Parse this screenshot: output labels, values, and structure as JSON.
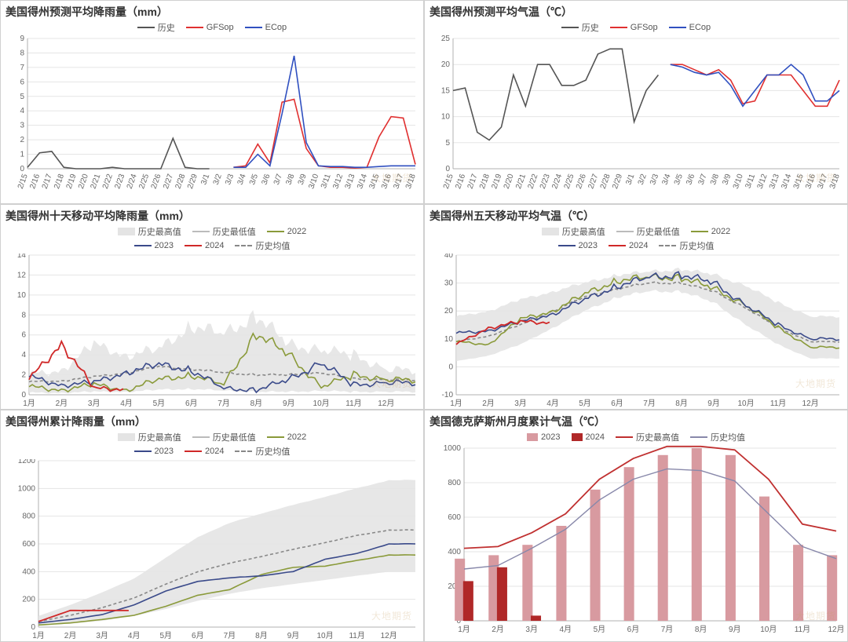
{
  "colors": {
    "history": "#555555",
    "gfsop": "#e03030",
    "ecop": "#3050c0",
    "hist_area": "#e4e4e4",
    "hist_low": "#bbbbbb",
    "y2022": "#8a9a3a",
    "y2023": "#3a4a8a",
    "y2024": "#d02828",
    "hist_mean": "#888888",
    "bar2023": "#d89aa0",
    "bar2024": "#b02828",
    "max_line": "#c03030",
    "mean_line": "#8888aa",
    "grid": "#e5e5e5",
    "axis": "#b0b0b0",
    "text": "#666666",
    "title": "#333333",
    "bg": "#ffffff"
  },
  "watermark": "大地期货",
  "months": [
    "1月",
    "2月",
    "3月",
    "4月",
    "5月",
    "6月",
    "7月",
    "8月",
    "9月",
    "10月",
    "11月",
    "12月"
  ],
  "panel1": {
    "title": "美国得州预测平均降雨量（mm）",
    "legend": [
      {
        "label": "历史",
        "color": "#555555",
        "style": "solid"
      },
      {
        "label": "GFSop",
        "color": "#e03030",
        "style": "solid"
      },
      {
        "label": "ECop",
        "color": "#3050c0",
        "style": "solid"
      }
    ],
    "ylim": [
      0,
      9
    ],
    "ytick_step": 1,
    "xlabels": [
      "2/15",
      "2/16",
      "2/17",
      "2/18",
      "2/19",
      "2/20",
      "2/21",
      "2/22",
      "2/23",
      "2/24",
      "2/25",
      "2/26",
      "2/27",
      "2/28",
      "2/29",
      "3/1",
      "3/2",
      "3/3",
      "3/4",
      "3/5",
      "3/6",
      "3/7",
      "3/8",
      "3/9",
      "3/10",
      "3/11",
      "3/12",
      "3/13",
      "3/14",
      "3/15",
      "3/16",
      "3/17",
      "3/18"
    ],
    "series": {
      "history": [
        0.1,
        1.1,
        1.2,
        0.1,
        0,
        0,
        0,
        0.1,
        0,
        0,
        0,
        0,
        2.1,
        0.1,
        0,
        0,
        null,
        null,
        null,
        null,
        null,
        null,
        null,
        null,
        null,
        null,
        null,
        null,
        null,
        null,
        null,
        null,
        null
      ],
      "gfsop": [
        null,
        null,
        null,
        null,
        null,
        null,
        null,
        null,
        null,
        null,
        null,
        null,
        null,
        null,
        null,
        null,
        null,
        0.1,
        0.2,
        1.7,
        0.4,
        4.6,
        4.8,
        1.4,
        0.2,
        0.1,
        0.1,
        0.05,
        0.1,
        2.2,
        3.6,
        3.5,
        0.3
      ],
      "ecop": [
        null,
        null,
        null,
        null,
        null,
        null,
        null,
        null,
        null,
        null,
        null,
        null,
        null,
        null,
        null,
        null,
        null,
        0.1,
        0.1,
        1.0,
        0.2,
        3.8,
        7.8,
        1.8,
        0.2,
        0.15,
        0.15,
        0.1,
        0.1,
        0.15,
        0.2,
        0.2,
        0.2
      ]
    }
  },
  "panel2": {
    "title": "美国得州预测平均气温（℃）",
    "legend": [
      {
        "label": "历史",
        "color": "#555555",
        "style": "solid"
      },
      {
        "label": "GFSop",
        "color": "#e03030",
        "style": "solid"
      },
      {
        "label": "ECop",
        "color": "#3050c0",
        "style": "solid"
      }
    ],
    "ylim": [
      0,
      25
    ],
    "ytick_step": 5,
    "xlabels": [
      "2/15",
      "2/16",
      "2/17",
      "2/18",
      "2/19",
      "2/20",
      "2/21",
      "2/22",
      "2/23",
      "2/24",
      "2/25",
      "2/26",
      "2/27",
      "2/28",
      "2/29",
      "3/1",
      "3/2",
      "3/3",
      "3/4",
      "3/5",
      "3/6",
      "3/7",
      "3/8",
      "3/9",
      "3/10",
      "3/11",
      "3/12",
      "3/13",
      "3/14",
      "3/15",
      "3/16",
      "3/17",
      "3/18"
    ],
    "series": {
      "history": [
        15,
        15.5,
        7,
        5.5,
        8,
        18,
        12,
        20,
        20,
        16,
        16,
        17,
        22,
        23,
        23,
        9,
        15,
        18,
        null,
        null,
        null,
        null,
        null,
        null,
        null,
        null,
        null,
        null,
        null,
        null,
        null,
        null,
        null
      ],
      "gfsop": [
        null,
        null,
        null,
        null,
        null,
        null,
        null,
        null,
        null,
        null,
        null,
        null,
        null,
        null,
        null,
        null,
        null,
        null,
        20,
        20,
        19,
        18,
        19,
        17,
        12.5,
        13,
        18,
        18,
        18,
        15,
        12,
        12,
        17
      ],
      "ecop": [
        null,
        null,
        null,
        null,
        null,
        null,
        null,
        null,
        null,
        null,
        null,
        null,
        null,
        null,
        null,
        null,
        null,
        null,
        20,
        19.5,
        18.5,
        18,
        18.5,
        16,
        12,
        15,
        18,
        18,
        20,
        18,
        13,
        13,
        15
      ]
    }
  },
  "panel3": {
    "title": "美国得州十天移动平均降雨量（mm）",
    "legend_area": {
      "label": "历史最高值"
    },
    "legend_low": {
      "label": "历史最低值"
    },
    "legend_lines": [
      {
        "label": "2022",
        "color": "#8a9a3a",
        "style": "solid"
      },
      {
        "label": "2023",
        "color": "#3a4a8a",
        "style": "solid"
      },
      {
        "label": "2024",
        "color": "#d02828",
        "style": "solid"
      },
      {
        "label": "历史均值",
        "color": "#888888",
        "style": "dashed"
      }
    ],
    "ylim": [
      0,
      14
    ],
    "ytick_step": 2,
    "band_hi": [
      2,
      2.5,
      5,
      4,
      4.5,
      7,
      6,
      8,
      5,
      4.5,
      4,
      2.5
    ],
    "band_lo": [
      0.2,
      0.2,
      0.3,
      0.3,
      0.5,
      0.6,
      0.4,
      0.3,
      0.3,
      0.4,
      0.3,
      0.3
    ],
    "y2022": [
      0.8,
      0.5,
      1.0,
      0.5,
      1.5,
      2.0,
      1.0,
      6.2,
      4.0,
      0.8,
      2.0,
      1.5
    ],
    "y2023": [
      1.8,
      1.0,
      1.2,
      2.3,
      3.0,
      2.5,
      0.6,
      0.5,
      1.5,
      3.2,
      1.0,
      1.2
    ],
    "y2024": [
      1.5,
      5.2,
      0.6,
      null,
      null,
      null,
      null,
      null,
      null,
      null,
      null,
      null
    ],
    "mean": [
      1.3,
      1.4,
      1.8,
      2.2,
      2.8,
      2.6,
      2.2,
      2.0,
      2.0,
      2.2,
      1.6,
      1.5
    ]
  },
  "panel4": {
    "title": "美国得州五天移动平均气温（℃）",
    "legend_area": {
      "label": "历史最高值"
    },
    "legend_low": {
      "label": "历史最低值"
    },
    "legend_lines": [
      {
        "label": "2022",
        "color": "#8a9a3a",
        "style": "solid"
      },
      {
        "label": "2023",
        "color": "#3a4a8a",
        "style": "solid"
      },
      {
        "label": "2024",
        "color": "#d02828",
        "style": "solid"
      },
      {
        "label": "历史均值",
        "color": "#888888",
        "style": "dashed"
      }
    ],
    "ylim": [
      -10,
      40
    ],
    "ytick_step": 10,
    "band_hi": [
      18,
      20,
      24,
      27,
      30,
      33,
      34,
      35,
      33,
      29,
      23,
      18
    ],
    "band_lo": [
      2,
      4,
      8,
      14,
      20,
      25,
      27,
      27,
      23,
      15,
      8,
      3
    ],
    "y2022": [
      9,
      8,
      17,
      20,
      26,
      31,
      32,
      32,
      28,
      22,
      14,
      7
    ],
    "y2023": [
      12,
      13,
      16,
      19,
      24,
      29,
      32,
      33,
      30,
      22,
      15,
      10
    ],
    "y2024": [
      8,
      14,
      16,
      null,
      null,
      null,
      null,
      null,
      null,
      null,
      null,
      null
    ],
    "mean": [
      9,
      11,
      15,
      20,
      25,
      28,
      30,
      30,
      27,
      21,
      14,
      9
    ]
  },
  "panel5": {
    "title": "美国得州累计降雨量（mm）",
    "legend_area": {
      "label": "历史最高值"
    },
    "legend_low": {
      "label": "历史最低值"
    },
    "legend_lines": [
      {
        "label": "2022",
        "color": "#8a9a3a",
        "style": "solid"
      },
      {
        "label": "2023",
        "color": "#3a4a8a",
        "style": "solid"
      },
      {
        "label": "2024",
        "color": "#d02828",
        "style": "solid"
      },
      {
        "label": "历史均值",
        "color": "#888888",
        "style": "dashed"
      }
    ],
    "ylim": [
      0,
      1200
    ],
    "ytick_step": 200,
    "band_hi": [
      80,
      160,
      250,
      350,
      500,
      650,
      750,
      820,
      880,
      940,
      1000,
      1060
    ],
    "band_lo": [
      10,
      25,
      45,
      80,
      130,
      190,
      240,
      280,
      310,
      340,
      370,
      400
    ],
    "y2022": [
      15,
      30,
      55,
      85,
      150,
      230,
      270,
      380,
      430,
      440,
      480,
      520
    ],
    "y2023": [
      30,
      55,
      90,
      160,
      260,
      330,
      355,
      370,
      400,
      490,
      530,
      600
    ],
    "y2024": [
      40,
      120,
      120,
      null,
      null,
      null,
      null,
      null,
      null,
      null,
      null,
      null
    ],
    "mean": [
      40,
      85,
      140,
      210,
      310,
      400,
      460,
      510,
      560,
      610,
      660,
      700
    ]
  },
  "panel6": {
    "title": "美国德克萨斯州月度累计气温（℃）",
    "legend": [
      {
        "label": "2023",
        "color": "#d89aa0",
        "type": "bar"
      },
      {
        "label": "2024",
        "color": "#b02828",
        "type": "bar"
      },
      {
        "label": "历史最高值",
        "color": "#c03030",
        "type": "line"
      },
      {
        "label": "历史均值",
        "color": "#8888aa",
        "type": "line"
      }
    ],
    "ylim": [
      0,
      1000
    ],
    "ytick_step": 200,
    "bars2023": [
      360,
      380,
      440,
      550,
      760,
      890,
      960,
      1000,
      960,
      720,
      440,
      380
    ],
    "bars2024": [
      230,
      310,
      30,
      null,
      null,
      null,
      null,
      null,
      null,
      null,
      null,
      null
    ],
    "max_line": [
      420,
      430,
      510,
      620,
      820,
      940,
      1010,
      1010,
      990,
      820,
      560,
      520
    ],
    "mean_line": [
      300,
      320,
      420,
      530,
      700,
      820,
      880,
      870,
      810,
      620,
      430,
      360
    ]
  }
}
